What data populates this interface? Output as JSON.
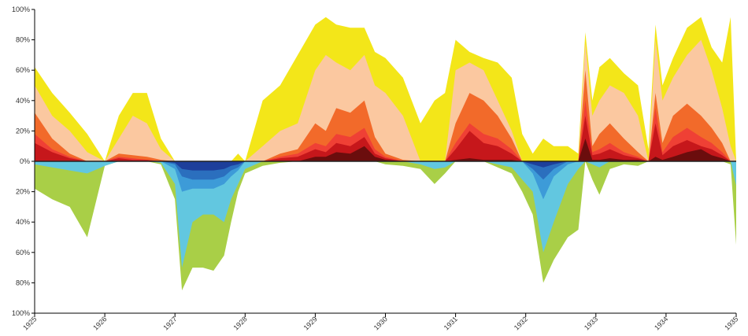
{
  "chart_data": {
    "type": "area",
    "title": "",
    "xlabel": "",
    "ylabel": "",
    "x_range": [
      1925,
      1935
    ],
    "ylim": [
      -100,
      100
    ],
    "x_tick_labels": [
      "1925",
      "1926",
      "1927",
      "1928",
      "1929",
      "1930",
      "1931",
      "1932",
      "1933",
      "1934",
      "1935"
    ],
    "y_tick_labels": [
      "100%",
      "80%",
      "60%",
      "40%",
      "20%",
      "0%",
      "20%",
      "40%",
      "60%",
      "80%",
      "100%"
    ],
    "grid": false,
    "legend": "none",
    "x": [
      1925.0,
      1925.25,
      1925.5,
      1925.75,
      1926.0,
      1926.2,
      1926.4,
      1926.6,
      1926.8,
      1927.0,
      1927.1,
      1927.25,
      1927.4,
      1927.55,
      1927.7,
      1927.8,
      1927.9,
      1928.0,
      1928.25,
      1928.5,
      1928.75,
      1929.0,
      1929.15,
      1929.3,
      1929.5,
      1929.7,
      1929.85,
      1930.0,
      1930.25,
      1930.5,
      1930.7,
      1930.85,
      1931.0,
      1931.2,
      1931.4,
      1931.6,
      1931.8,
      1931.95,
      1932.1,
      1932.25,
      1932.4,
      1932.6,
      1932.75,
      1932.85,
      1932.95,
      1933.05,
      1933.2,
      1933.4,
      1933.6,
      1933.75,
      1933.85,
      1933.95,
      1934.1,
      1934.3,
      1934.5,
      1934.65,
      1934.8,
      1934.92,
      1935.0
    ],
    "positive_series": [
      {
        "color": "#6b0d0d",
        "values": [
          0,
          0,
          0,
          0,
          0,
          0,
          0,
          0,
          0,
          0,
          0,
          0,
          0,
          0,
          0,
          0,
          0,
          0,
          0,
          0,
          0,
          3,
          3,
          6,
          5,
          10,
          3,
          1,
          0,
          0,
          0,
          0,
          1,
          2,
          1,
          1,
          1,
          0,
          0,
          0,
          0,
          0,
          0,
          15,
          1,
          1,
          2,
          1,
          1,
          0,
          3,
          1,
          3,
          6,
          8,
          4,
          2,
          0,
          0
        ]
      },
      {
        "color": "#c6171b",
        "values": [
          12,
          6,
          2,
          0,
          0,
          2,
          1,
          1,
          0,
          0,
          0,
          0,
          0,
          0,
          0,
          0,
          0,
          0,
          0,
          2,
          3,
          8,
          6,
          12,
          10,
          16,
          5,
          2,
          0,
          0,
          0,
          0,
          8,
          20,
          12,
          10,
          5,
          0,
          0,
          0,
          0,
          0,
          0,
          30,
          4,
          5,
          8,
          4,
          2,
          0,
          25,
          4,
          10,
          14,
          10,
          8,
          4,
          0,
          0
        ]
      },
      {
        "color": "#ef4035",
        "values": [
          18,
          8,
          3,
          0,
          0,
          3,
          2,
          1,
          0,
          0,
          0,
          0,
          0,
          0,
          0,
          0,
          0,
          0,
          0,
          3,
          5,
          12,
          10,
          18,
          16,
          22,
          8,
          3,
          0,
          0,
          0,
          0,
          12,
          25,
          18,
          15,
          8,
          0,
          0,
          0,
          0,
          0,
          0,
          40,
          6,
          8,
          12,
          6,
          3,
          0,
          35,
          6,
          16,
          22,
          16,
          12,
          6,
          0,
          0
        ]
      },
      {
        "color": "#f26a2a",
        "values": [
          32,
          15,
          5,
          0,
          0,
          5,
          4,
          3,
          1,
          0,
          0,
          0,
          0,
          0,
          0,
          0,
          0,
          0,
          0,
          5,
          8,
          25,
          20,
          35,
          32,
          40,
          16,
          5,
          1,
          0,
          0,
          0,
          25,
          45,
          40,
          30,
          15,
          0,
          0,
          0,
          0,
          0,
          0,
          60,
          10,
          18,
          25,
          15,
          6,
          0,
          45,
          12,
          30,
          38,
          30,
          22,
          12,
          0,
          0
        ]
      },
      {
        "color": "#fbc8a0",
        "values": [
          50,
          30,
          20,
          6,
          0,
          15,
          30,
          25,
          8,
          0,
          0,
          0,
          0,
          0,
          0,
          0,
          0,
          0,
          10,
          20,
          25,
          60,
          70,
          65,
          60,
          70,
          50,
          45,
          30,
          0,
          0,
          0,
          60,
          65,
          60,
          40,
          20,
          0,
          0,
          0,
          0,
          0,
          0,
          78,
          30,
          40,
          50,
          45,
          30,
          0,
          80,
          40,
          55,
          70,
          80,
          60,
          35,
          10,
          0
        ]
      },
      {
        "color": "#f3e619",
        "values": [
          62,
          45,
          32,
          18,
          0,
          30,
          45,
          45,
          15,
          0,
          0,
          0,
          0,
          0,
          0,
          0,
          5,
          0,
          40,
          50,
          70,
          90,
          95,
          90,
          88,
          88,
          72,
          68,
          55,
          25,
          40,
          45,
          80,
          72,
          68,
          65,
          55,
          18,
          5,
          15,
          10,
          10,
          5,
          85,
          40,
          62,
          68,
          58,
          50,
          8,
          90,
          50,
          68,
          88,
          95,
          75,
          65,
          95,
          0
        ]
      }
    ],
    "negative_series": [
      {
        "color": "#1d3f9b",
        "values": [
          0,
          0,
          0,
          0,
          0,
          0,
          0,
          0,
          0,
          1,
          5,
          6,
          6,
          6,
          5,
          3,
          2,
          0,
          0,
          0,
          0,
          0,
          0,
          0,
          0,
          0,
          0,
          0,
          0,
          0,
          0,
          0,
          0,
          0,
          0,
          0,
          0,
          0,
          2,
          4,
          2,
          0,
          0,
          0,
          0,
          0,
          0,
          0,
          0,
          0,
          0,
          0,
          0,
          0,
          0,
          0,
          0,
          0,
          0
        ]
      },
      {
        "color": "#2b6fbe",
        "values": [
          0,
          0,
          0,
          0,
          0,
          0,
          0,
          0,
          0,
          2,
          10,
          12,
          12,
          12,
          10,
          6,
          4,
          0,
          0,
          0,
          0,
          0,
          0,
          0,
          0,
          0,
          0,
          0,
          0,
          0,
          0,
          0,
          0,
          0,
          0,
          0,
          0,
          0,
          5,
          12,
          5,
          0,
          0,
          0,
          0,
          0,
          0,
          0,
          0,
          0,
          0,
          0,
          0,
          0,
          0,
          0,
          0,
          0,
          0
        ]
      },
      {
        "color": "#3d9bd8",
        "values": [
          0,
          0,
          0,
          0,
          0,
          0,
          0,
          0,
          0,
          5,
          20,
          18,
          18,
          18,
          15,
          10,
          6,
          0,
          0,
          0,
          0,
          0,
          0,
          0,
          0,
          0,
          0,
          0,
          0,
          0,
          0,
          0,
          0,
          0,
          0,
          0,
          0,
          0,
          8,
          25,
          10,
          2,
          0,
          0,
          0,
          0,
          0,
          0,
          0,
          0,
          0,
          0,
          0,
          0,
          0,
          0,
          0,
          0,
          0
        ]
      },
      {
        "color": "#62c7e0",
        "values": [
          2,
          4,
          6,
          8,
          3,
          0,
          0,
          0,
          1,
          15,
          70,
          40,
          35,
          35,
          40,
          25,
          15,
          5,
          0,
          0,
          0,
          0,
          0,
          0,
          0,
          0,
          0,
          0,
          0,
          2,
          5,
          4,
          0,
          0,
          0,
          2,
          4,
          12,
          20,
          60,
          40,
          15,
          5,
          0,
          2,
          4,
          0,
          0,
          0,
          0,
          0,
          0,
          0,
          0,
          0,
          0,
          0,
          0,
          16
        ]
      },
      {
        "color": "#a9cf47",
        "values": [
          18,
          25,
          30,
          50,
          3,
          0,
          0,
          0,
          2,
          25,
          85,
          70,
          70,
          72,
          62,
          40,
          20,
          8,
          3,
          1,
          0,
          0,
          0,
          0,
          0,
          0,
          0,
          2,
          3,
          5,
          15,
          8,
          0,
          0,
          0,
          4,
          8,
          20,
          35,
          80,
          65,
          50,
          45,
          0,
          12,
          22,
          5,
          2,
          3,
          0,
          0,
          0,
          0,
          0,
          0,
          0,
          0,
          2,
          55
        ]
      }
    ]
  }
}
